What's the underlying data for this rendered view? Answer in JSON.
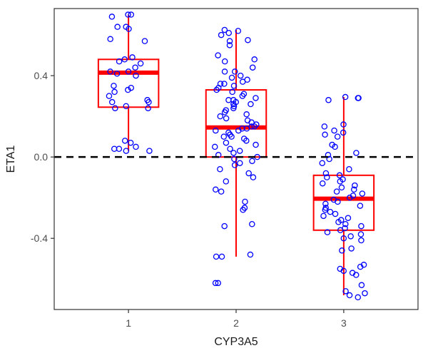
{
  "chart_data": {
    "type": "box",
    "title": "",
    "xlabel": "CYP3A5",
    "ylabel": "ETA1",
    "categories": [
      "1",
      "2",
      "3"
    ],
    "yticks": [
      -0.4,
      0.0,
      0.4
    ],
    "ytick_labels": [
      "-0.4",
      "0.0",
      "0.4"
    ],
    "ylim": [
      -0.75,
      0.73
    ],
    "reference_line": {
      "y": 0.0,
      "style": "dashed",
      "color": "#000000"
    },
    "box_color": "#ff0000",
    "point_color": "#0000ff",
    "grid": false,
    "legend": "none",
    "boxes": [
      {
        "category": "1",
        "whisker_low": 0.03,
        "q1": 0.245,
        "median": 0.415,
        "q3": 0.48,
        "whisker_high": 0.7,
        "points": [
          0.7,
          0.7,
          0.69,
          0.64,
          0.64,
          0.63,
          0.58,
          0.57,
          0.49,
          0.48,
          0.47,
          0.46,
          0.44,
          0.42,
          0.42,
          0.41,
          0.4,
          0.35,
          0.34,
          0.33,
          0.32,
          0.3,
          0.28,
          0.27,
          0.27,
          0.25,
          0.24,
          0.24,
          0.08,
          0.07,
          0.05,
          0.04,
          0.04,
          0.03,
          0.03
        ]
      },
      {
        "category": "2",
        "whisker_low": -0.49,
        "q1": 0.0,
        "median": 0.145,
        "q3": 0.33,
        "whisker_high": 0.625,
        "points": [
          0.625,
          0.62,
          0.61,
          0.6,
          0.575,
          0.57,
          0.55,
          0.5,
          0.48,
          0.47,
          0.44,
          0.42,
          0.42,
          0.4,
          0.39,
          0.38,
          0.37,
          0.36,
          0.36,
          0.35,
          0.34,
          0.33,
          0.32,
          0.31,
          0.3,
          0.29,
          0.28,
          0.28,
          0.27,
          0.26,
          0.26,
          0.25,
          0.24,
          0.23,
          0.22,
          0.21,
          0.2,
          0.19,
          0.18,
          0.17,
          0.16,
          0.15,
          0.15,
          0.14,
          0.14,
          0.13,
          0.13,
          0.12,
          0.11,
          0.1,
          0.1,
          0.09,
          0.08,
          0.07,
          0.06,
          0.05,
          0.04,
          0.03,
          0.02,
          0.01,
          0.0,
          -0.01,
          -0.02,
          -0.03,
          -0.04,
          -0.06,
          -0.08,
          -0.1,
          -0.12,
          -0.16,
          -0.17,
          -0.22,
          -0.25,
          -0.26,
          -0.33,
          -0.34,
          -0.48,
          -0.49,
          -0.49,
          -0.62,
          -0.62
        ]
      },
      {
        "category": "3",
        "whisker_low": -0.68,
        "q1": -0.36,
        "median": -0.205,
        "q3": -0.09,
        "whisker_high": 0.295,
        "points": [
          0.295,
          0.29,
          0.29,
          0.28,
          0.16,
          0.15,
          0.13,
          0.12,
          0.11,
          0.1,
          0.06,
          0.05,
          0.02,
          0.01,
          -0.01,
          -0.03,
          -0.06,
          -0.08,
          -0.09,
          -0.1,
          -0.11,
          -0.12,
          -0.13,
          -0.14,
          -0.15,
          -0.16,
          -0.17,
          -0.18,
          -0.19,
          -0.2,
          -0.21,
          -0.22,
          -0.23,
          -0.24,
          -0.25,
          -0.26,
          -0.27,
          -0.28,
          -0.29,
          -0.3,
          -0.31,
          -0.32,
          -0.33,
          -0.34,
          -0.35,
          -0.36,
          -0.37,
          -0.38,
          -0.39,
          -0.4,
          -0.41,
          -0.45,
          -0.46,
          -0.53,
          -0.54,
          -0.55,
          -0.56,
          -0.57,
          -0.58,
          -0.63,
          -0.66,
          -0.67,
          -0.68,
          -0.69
        ]
      }
    ]
  }
}
